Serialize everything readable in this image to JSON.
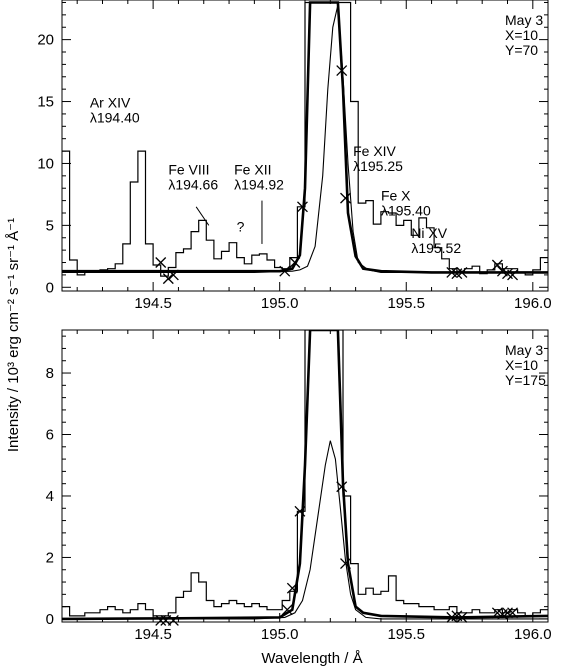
{
  "chart_data": [
    {
      "type": "line",
      "xlim": [
        194.14,
        196.06
      ],
      "ylim": [
        -0.3,
        23.2
      ],
      "xticks": [
        194.5,
        195.0,
        195.5,
        196.0
      ],
      "xtick_labels": [
        "194.5",
        "195.0",
        "195.5",
        "196.0"
      ],
      "yticks": [
        0,
        5,
        10,
        15,
        20
      ],
      "ytick_labels": [
        "0",
        "5",
        "10",
        "15",
        "20"
      ],
      "legend_lines": [
        "May 3",
        "X=10",
        "Y=70"
      ],
      "series": [
        {
          "style": "histogram",
          "x": [
            194.14,
            194.17,
            194.2,
            194.23,
            194.26,
            194.29,
            194.32,
            194.35,
            194.38,
            194.41,
            194.44,
            194.47,
            194.5,
            194.53,
            194.56,
            194.59,
            194.62,
            194.65,
            194.68,
            194.71,
            194.74,
            194.77,
            194.8,
            194.83,
            194.86,
            194.89,
            194.92,
            194.95,
            194.98,
            195.01,
            195.04,
            195.07,
            195.1,
            195.13,
            195.16,
            195.19,
            195.22,
            195.25,
            195.28,
            195.31,
            195.34,
            195.37,
            195.4,
            195.43,
            195.46,
            195.49,
            195.52,
            195.55,
            195.58,
            195.61,
            195.64,
            195.67,
            195.7,
            195.73,
            195.76,
            195.79,
            195.82,
            195.85,
            195.88,
            195.91,
            195.94,
            195.97,
            196.0,
            196.03,
            196.06
          ],
          "y": [
            11,
            2.2,
            1.0,
            1.3,
            1.2,
            1.4,
            1.5,
            1.9,
            3.5,
            8.5,
            11,
            3.5,
            1.8,
            0.9,
            1.6,
            2.8,
            3.1,
            4.5,
            5.4,
            3.8,
            2.3,
            2.9,
            3.6,
            2.4,
            1.9,
            2.6,
            2.7,
            2.2,
            1.6,
            1.5,
            2.4,
            6.5,
            23,
            23,
            23,
            23,
            23,
            23,
            15,
            6.8,
            7.0,
            5.1,
            6.1,
            6.0,
            5.0,
            5.4,
            4.2,
            5.6,
            4.8,
            3.2,
            2.3,
            1.5,
            1.3,
            1.5,
            1.7,
            1.1,
            1.4,
            1.9,
            1.5,
            1.5,
            1.2,
            1.0,
            1.4,
            2.4,
            2.0
          ]
        },
        {
          "style": "fit-total",
          "x": [
            194.14,
            194.6,
            195.0,
            195.05,
            195.08,
            195.1,
            195.12,
            195.15,
            195.18,
            195.2,
            195.23,
            195.25,
            195.27,
            195.3,
            195.33,
            195.4,
            195.6,
            196.06
          ],
          "y": [
            1.3,
            1.3,
            1.3,
            1.5,
            2.6,
            8,
            23,
            23,
            23,
            23,
            23,
            16,
            6,
            2.5,
            1.5,
            1.3,
            1.2,
            1.2
          ]
        },
        {
          "style": "fit-component",
          "x": [
            194.14,
            194.9,
            195.05,
            195.08,
            195.11,
            195.14,
            195.17,
            195.19,
            195.21,
            195.23,
            195.25,
            195.27,
            195.29,
            195.31,
            195.35,
            195.4,
            196.06
          ],
          "y": [
            1.2,
            1.2,
            1.3,
            1.4,
            1.7,
            3.3,
            9,
            16,
            21,
            22.8,
            17,
            10,
            4.5,
            2.0,
            1.4,
            1.2,
            1.2
          ]
        },
        {
          "style": "crosses",
          "x": [
            194.53,
            194.56,
            194.58,
            195.02,
            195.06,
            195.09,
            195.245,
            195.26,
            195.68,
            195.7,
            195.72,
            195.86,
            195.88,
            195.9,
            195.92
          ],
          "y": [
            2.0,
            0.7,
            1.0,
            1.3,
            2.0,
            6.5,
            17.5,
            7.2,
            1.2,
            1.1,
            1.2,
            1.8,
            1.3,
            1.1,
            1.0
          ]
        }
      ],
      "annotations": [
        {
          "lines": [
            "Ar XIV",
            "λ194.40"
          ],
          "x": 194.25,
          "y": 14.5
        },
        {
          "lines": [
            "Fe VIII",
            "λ194.66"
          ],
          "x": 194.56,
          "y": 9.1,
          "leader": [
            194.67,
            6.5,
            194.72,
            5.0
          ]
        },
        {
          "lines": [
            "Fe XII",
            "λ194.92"
          ],
          "x": 194.82,
          "y": 9.1,
          "leader": [
            194.93,
            7.0,
            194.93,
            3.5
          ]
        },
        {
          "lines": [
            "?"
          ],
          "x": 194.83,
          "y": 4.5
        },
        {
          "lines": [
            "Fe XIV",
            "λ195.25"
          ],
          "x": 195.29,
          "y": 10.6
        },
        {
          "lines": [
            "Fe X",
            "λ195.40"
          ],
          "x": 195.4,
          "y": 7.0
        },
        {
          "lines": [
            "Ni XV",
            "λ195.52"
          ],
          "x": 195.52,
          "y": 4.0
        }
      ]
    },
    {
      "type": "line",
      "xlim": [
        194.14,
        196.06
      ],
      "ylim": [
        -0.1,
        9.4
      ],
      "xticks": [
        194.5,
        195.0,
        195.5,
        196.0
      ],
      "xtick_labels": [
        "194.5",
        "195.0",
        "195.5",
        "196.0"
      ],
      "yticks": [
        0,
        2,
        4,
        6,
        8
      ],
      "ytick_labels": [
        "0",
        "2",
        "4",
        "6",
        "8"
      ],
      "legend_lines": [
        "May 3",
        "X=10",
        "Y=175"
      ],
      "series": [
        {
          "style": "histogram",
          "x": [
            194.14,
            194.17,
            194.2,
            194.23,
            194.26,
            194.29,
            194.32,
            194.35,
            194.38,
            194.41,
            194.44,
            194.47,
            194.5,
            194.53,
            194.56,
            194.59,
            194.62,
            194.65,
            194.68,
            194.71,
            194.74,
            194.77,
            194.8,
            194.83,
            194.86,
            194.89,
            194.92,
            194.95,
            194.98,
            195.01,
            195.04,
            195.07,
            195.1,
            195.13,
            195.16,
            195.19,
            195.22,
            195.25,
            195.28,
            195.31,
            195.34,
            195.37,
            195.4,
            195.43,
            195.46,
            195.49,
            195.52,
            195.55,
            195.58,
            195.61,
            195.64,
            195.67,
            195.7,
            195.73,
            195.76,
            195.79,
            195.82,
            195.85,
            195.88,
            195.91,
            195.94,
            195.97,
            196.0,
            196.03,
            196.06
          ],
          "y": [
            0.4,
            0.1,
            0.1,
            0.2,
            0.2,
            0.3,
            0.4,
            0.3,
            0.2,
            0.3,
            0.5,
            0.3,
            0.1,
            0.1,
            0.2,
            0.7,
            0.9,
            1.5,
            1.2,
            0.6,
            0.4,
            0.5,
            0.6,
            0.5,
            0.4,
            0.5,
            0.4,
            0.3,
            0.3,
            0.6,
            0.9,
            3.5,
            9.4,
            9.4,
            9.4,
            9.4,
            9.4,
            4.0,
            1.8,
            0.8,
            1.0,
            0.8,
            0.9,
            1.4,
            0.6,
            0.5,
            0.5,
            0.4,
            0.4,
            0.3,
            0.3,
            0.4,
            0.2,
            0.2,
            0.3,
            0.2,
            0.2,
            0.3,
            0.2,
            0.3,
            0.2,
            0.1,
            0.2,
            0.3,
            0.3
          ]
        },
        {
          "style": "fit-total",
          "x": [
            194.14,
            194.6,
            195.0,
            195.05,
            195.08,
            195.1,
            195.12,
            195.15,
            195.18,
            195.21,
            195.23,
            195.25,
            195.27,
            195.3,
            195.33,
            195.4,
            195.7,
            196.06
          ],
          "y": [
            0.0,
            0.02,
            0.05,
            0.3,
            1.8,
            5,
            9.4,
            9.4,
            9.4,
            9.4,
            9.4,
            4.4,
            1.8,
            0.4,
            0.2,
            0.1,
            0.05,
            0.1
          ]
        },
        {
          "style": "fit-component",
          "x": [
            194.14,
            194.9,
            195.02,
            195.06,
            195.09,
            195.12,
            195.15,
            195.18,
            195.2,
            195.22,
            195.24,
            195.26,
            195.28,
            195.3,
            195.34,
            195.4,
            196.06
          ],
          "y": [
            0.0,
            0.0,
            0.05,
            0.2,
            0.6,
            1.6,
            3.3,
            5.0,
            5.8,
            5.2,
            3.6,
            1.9,
            0.8,
            0.3,
            0.05,
            0.0,
            0.0
          ]
        },
        {
          "style": "crosses",
          "x": [
            194.53,
            194.55,
            194.58,
            195.03,
            195.05,
            195.08,
            195.245,
            195.26,
            195.68,
            195.7,
            195.72,
            195.86,
            195.88,
            195.9,
            195.92
          ],
          "y": [
            -0.05,
            -0.05,
            -0.05,
            0.3,
            1.0,
            3.5,
            4.3,
            1.8,
            0.05,
            0.1,
            0.05,
            0.2,
            0.15,
            0.2,
            0.2
          ]
        }
      ],
      "annotations": []
    }
  ],
  "shared_labels": {
    "xlabel": "Wavelength / Å",
    "ylabel": "Intensity / 10³ erg cm⁻² s⁻¹ sr⁻¹ Å⁻¹"
  }
}
